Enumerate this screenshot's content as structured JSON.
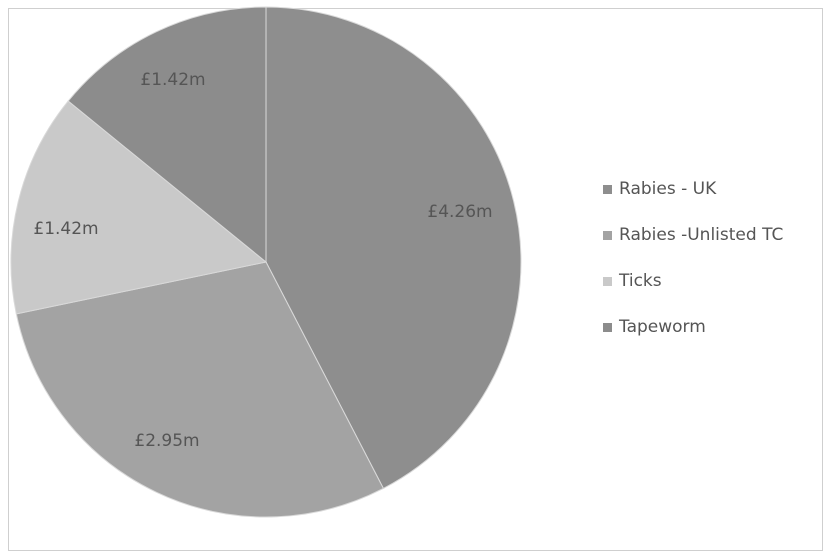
{
  "chart_data": {
    "type": "pie",
    "title": "",
    "unit_prefix": "£",
    "unit_suffix": "m",
    "legend_position": "right",
    "slices": [
      {
        "name": "Rabies - UK",
        "value": 4.26,
        "label": "£4.26m",
        "color": "#8e8e8e"
      },
      {
        "name": "Rabies -Unlisted TC",
        "value": 2.95,
        "label": "£2.95m",
        "color": "#a3a3a3"
      },
      {
        "name": "Ticks",
        "value": 1.42,
        "label": "£1.42m",
        "color": "#c9c9c9"
      },
      {
        "name": "Tapeworm",
        "value": 1.42,
        "label": "£1.42m",
        "color": "#8c8c8c"
      }
    ]
  }
}
